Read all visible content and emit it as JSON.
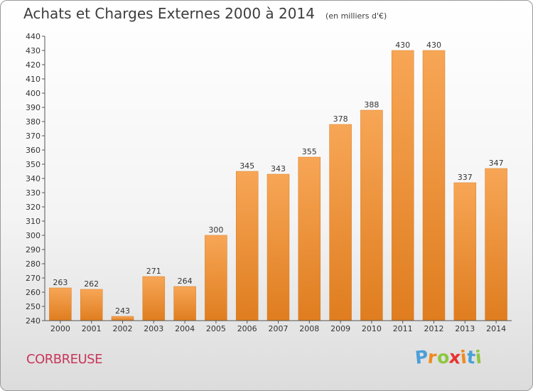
{
  "title": "Achats et Charges Externes 2000 à 2014",
  "unit": "(en milliers d'€)",
  "commune": "CORBREUSE",
  "logo": {
    "letters": [
      "P",
      "r",
      "o",
      "x",
      "i",
      "t",
      "i"
    ],
    "colors": [
      "#4a9fd8",
      "#f08a1e",
      "#8cc63f",
      "#e8312f",
      "#f08a1e",
      "#4a9fd8",
      "#8cc63f"
    ]
  },
  "chart_data": {
    "type": "bar",
    "categories": [
      "2000",
      "2001",
      "2002",
      "2003",
      "2004",
      "2005",
      "2006",
      "2007",
      "2008",
      "2009",
      "2010",
      "2011",
      "2012",
      "2013",
      "2014"
    ],
    "values": [
      263,
      262,
      243,
      271,
      264,
      300,
      345,
      343,
      355,
      378,
      388,
      430,
      430,
      337,
      347
    ],
    "title": "Achats et Charges Externes 2000 à 2014",
    "xlabel": "",
    "ylabel": "",
    "ylim": [
      240,
      440
    ],
    "ytick_step": 10,
    "grid": false,
    "bar_color": "#f0903a"
  }
}
